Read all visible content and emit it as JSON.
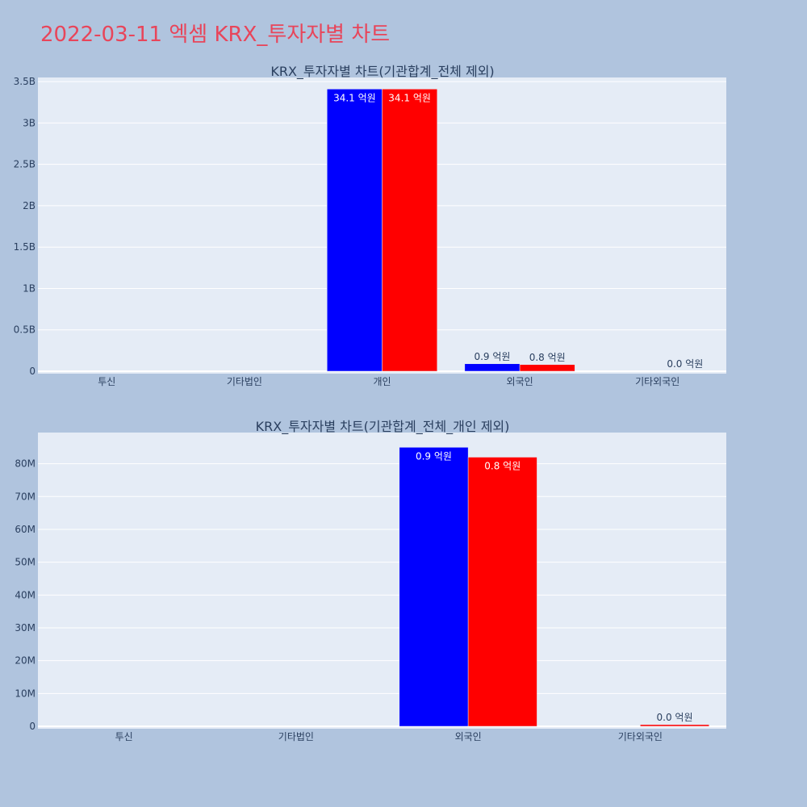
{
  "page": {
    "title": "2022-03-11 엑셈 KRX_투자자별 차트",
    "title_color": "#e8455a",
    "background": "#b0c4de",
    "plot_background": "#e5ecf6"
  },
  "chart_data": [
    {
      "type": "bar",
      "title": "KRX_투자자별 차트(기관합계_전체 제외)",
      "categories": [
        "투신",
        "기타법인",
        "개인",
        "외국인",
        "기타외국인"
      ],
      "series": [
        {
          "color": "#0000ff",
          "values": [
            0,
            0,
            3410000000,
            90000000,
            0
          ],
          "labels": [
            "",
            "",
            "34.1 억원",
            "0.9 억원",
            ""
          ]
        },
        {
          "color": "#ff0000",
          "values": [
            0,
            0,
            3410000000,
            80000000,
            0
          ],
          "labels": [
            "",
            "",
            "34.1 억원",
            "0.8 억원",
            "0.0 억원"
          ]
        }
      ],
      "ylim": [
        0,
        3550000000
      ],
      "yticks": [
        0,
        500000000,
        1000000000,
        1500000000,
        2000000000,
        2500000000,
        3000000000,
        3500000000
      ],
      "ytick_labels": [
        "0",
        "0.5B",
        "1B",
        "1.5B",
        "2B",
        "2.5B",
        "3B",
        "3.5B"
      ],
      "xlabel": "",
      "ylabel": "",
      "grid": true,
      "legend": "none"
    },
    {
      "type": "bar",
      "title": "KRX_투자자별 차트(기관합계_전체_개인 제외)",
      "categories": [
        "투신",
        "기타법인",
        "외국인",
        "기타외국인"
      ],
      "series": [
        {
          "color": "#0000ff",
          "values": [
            0,
            0,
            85000000,
            0
          ],
          "labels": [
            "",
            "",
            "0.9 억원",
            ""
          ]
        },
        {
          "color": "#ff0000",
          "values": [
            0,
            0,
            82000000,
            500000
          ],
          "labels": [
            "",
            "",
            "0.8 억원",
            "0.0 억원"
          ]
        }
      ],
      "ylim": [
        0,
        89500000
      ],
      "yticks": [
        0,
        10000000,
        20000000,
        30000000,
        40000000,
        50000000,
        60000000,
        70000000,
        80000000
      ],
      "ytick_labels": [
        "0",
        "10M",
        "20M",
        "30M",
        "40M",
        "50M",
        "60M",
        "70M",
        "80M"
      ],
      "xlabel": "",
      "ylabel": "",
      "grid": true,
      "legend": "none"
    }
  ]
}
